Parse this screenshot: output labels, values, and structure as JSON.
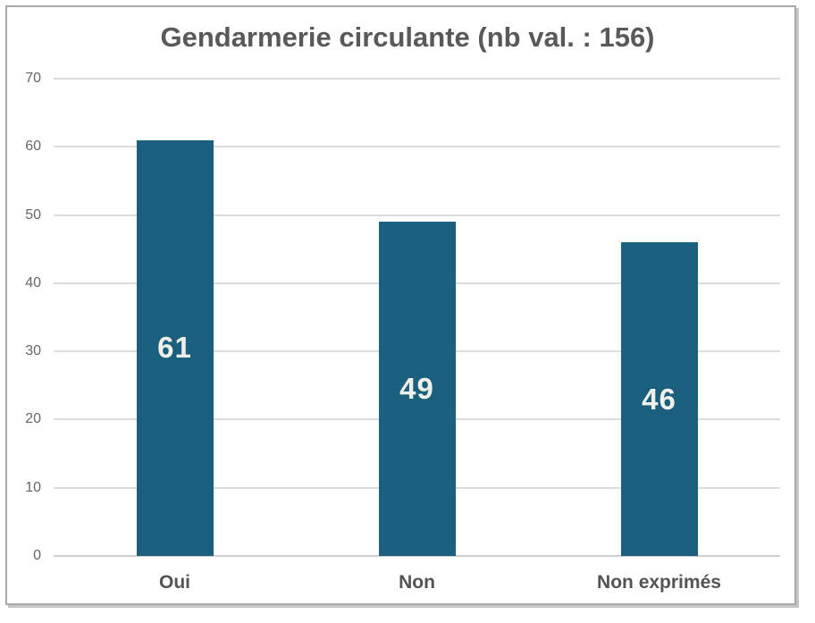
{
  "chart_data": {
    "type": "bar",
    "title": "Gendarmerie circulante (nb val. : 156)",
    "categories": [
      "Oui",
      "Non",
      "Non exprimés"
    ],
    "values": [
      61,
      49,
      46
    ],
    "bar_labels": [
      "61",
      "49",
      "46"
    ],
    "xlabel": "",
    "ylabel": "",
    "ylim": [
      0,
      70
    ],
    "yticks": [
      0,
      10,
      20,
      30,
      40,
      50,
      60,
      70
    ],
    "grid": "horizontal-only",
    "legend_position": "none",
    "colors": {
      "bar_fill": "#1b5f7f",
      "bar_value_label": "#f0efe9",
      "title_text": "#59595b",
      "y_tick_text": "#666668",
      "category_text": "#545456",
      "gridline": "#dcdcdc",
      "axis_line": "#cfcfcf",
      "frame_border": "#a9a9a9",
      "background": "#ffffff"
    }
  }
}
